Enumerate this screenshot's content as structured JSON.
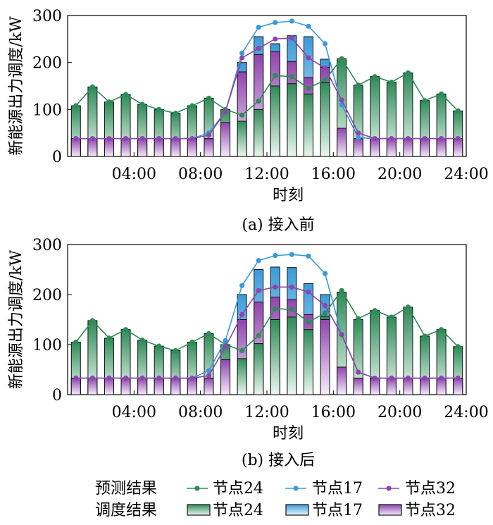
{
  "chart_data": [
    {
      "type": "bar",
      "subtitle": "(a) 接入前",
      "xlabel": "时刻",
      "ylabel": "新能源出力调度/kW",
      "ylim": [
        0,
        300
      ],
      "yticks": [
        "0",
        "100",
        "200",
        "300"
      ],
      "xticks": [
        "04:00",
        "08:00",
        "12:00",
        "16:00",
        "20:00",
        "24:00"
      ],
      "x": [
        1,
        2,
        3,
        4,
        5,
        6,
        7,
        8,
        9,
        10,
        11,
        12,
        13,
        14,
        15,
        16,
        17,
        18,
        19,
        20,
        21,
        22,
        23,
        24
      ],
      "forecast": {
        "series": [
          {
            "name": "节点24",
            "values": [
              108,
              148,
              116,
              132,
              111,
              100,
              92,
              108,
              124,
              100,
              88,
              118,
              172,
              170,
              145,
              163,
              208,
              152,
              170,
              158,
              178,
              119,
              133,
              97
            ]
          },
          {
            "name": "节点17",
            "values": [
              38,
              38,
              38,
              38,
              38,
              38,
              38,
              38,
              50,
              95,
              220,
              275,
              285,
              288,
              277,
              240,
              110,
              40,
              38,
              38,
              38,
              38,
              38,
              38
            ]
          },
          {
            "name": "节点32",
            "values": [
              38,
              38,
              38,
              38,
              38,
              38,
              38,
              38,
              45,
              95,
              210,
              230,
              250,
              252,
              210,
              188,
              120,
              50,
              38,
              38,
              38,
              38,
              38,
              38
            ]
          }
        ]
      },
      "dispatch": {
        "series": [
          {
            "name": "节点24",
            "values": [
              108,
              148,
              116,
              132,
              111,
              100,
              92,
              108,
              124,
              100,
              75,
              100,
              150,
              155,
              133,
              157,
              208,
              152,
              170,
              158,
              178,
              119,
              133,
              97
            ]
          },
          {
            "name": "节点17",
            "values": [
              38,
              38,
              38,
              38,
              38,
              38,
              38,
              38,
              38,
              72,
              200,
              255,
              240,
              257,
              255,
              207,
              60,
              38,
              38,
              38,
              38,
              38,
              38,
              38
            ]
          },
          {
            "name": "节点32",
            "values": [
              38,
              38,
              38,
              38,
              38,
              38,
              38,
              38,
              38,
              72,
              180,
              217,
              223,
              202,
              168,
              190,
              60,
              38,
              38,
              38,
              38,
              38,
              38,
              38
            ]
          }
        ]
      }
    },
    {
      "type": "bar",
      "subtitle": "(b) 接入后",
      "xlabel": "时刻",
      "ylabel": "新能源出力调度/kW",
      "ylim": [
        0,
        300
      ],
      "yticks": [
        "0",
        "100",
        "200",
        "300"
      ],
      "xticks": [
        "04:00",
        "08:00",
        "12:00",
        "16:00",
        "20:00",
        "24:00"
      ],
      "x": [
        1,
        2,
        3,
        4,
        5,
        6,
        7,
        8,
        9,
        10,
        11,
        12,
        13,
        14,
        15,
        16,
        17,
        18,
        19,
        20,
        21,
        22,
        23,
        24
      ],
      "forecast": {
        "series": [
          {
            "name": "节点24",
            "values": [
              105,
              148,
              113,
              130,
              109,
              97,
              88,
              105,
              122,
              100,
              88,
              118,
              172,
              170,
              145,
              163,
              208,
              152,
              168,
              155,
              175,
              117,
              130,
              96
            ]
          },
          {
            "name": "节点17",
            "values": [
              33,
              33,
              33,
              33,
              33,
              33,
              33,
              33,
              48,
              108,
              218,
              268,
              278,
              280,
              277,
              242,
              120,
              45,
              33,
              33,
              33,
              33,
              33,
              33
            ]
          },
          {
            "name": "节点32",
            "values": [
              33,
              33,
              33,
              33,
              33,
              33,
              33,
              33,
              38,
              95,
              160,
              208,
              215,
              215,
              205,
              178,
              120,
              45,
              33,
              33,
              33,
              33,
              33,
              33
            ]
          }
        ]
      },
      "dispatch": {
        "series": [
          {
            "name": "节点24",
            "values": [
              105,
              148,
              113,
              130,
              109,
              97,
              88,
              105,
              122,
              100,
              72,
              102,
              150,
              155,
              130,
              157,
              205,
              150,
              168,
              155,
              175,
              117,
              130,
              96
            ]
          },
          {
            "name": "节点17",
            "values": [
              33,
              33,
              33,
              33,
              33,
              33,
              33,
              33,
              33,
              70,
              200,
              250,
              255,
              254,
              222,
              200,
              55,
              33,
              33,
              33,
              33,
              33,
              33,
              33
            ]
          },
          {
            "name": "节点32",
            "values": [
              33,
              33,
              33,
              33,
              33,
              33,
              33,
              33,
              33,
              70,
              150,
              185,
              195,
              190,
              160,
              150,
              55,
              33,
              33,
              33,
              33,
              33,
              33,
              33
            ]
          }
        ]
      }
    }
  ],
  "legend": {
    "forecast_label": "预测结果",
    "dispatch_label": "调度结果",
    "items": [
      {
        "name": "节点24",
        "color": "#2e8b57"
      },
      {
        "name": "节点17",
        "color": "#3a9ad9"
      },
      {
        "name": "节点32",
        "color": "#8e44ad"
      }
    ]
  },
  "colors": {
    "node24_line": "#2e8b57",
    "node17_line": "#3a9ad9",
    "node32_line": "#8e44ad"
  }
}
